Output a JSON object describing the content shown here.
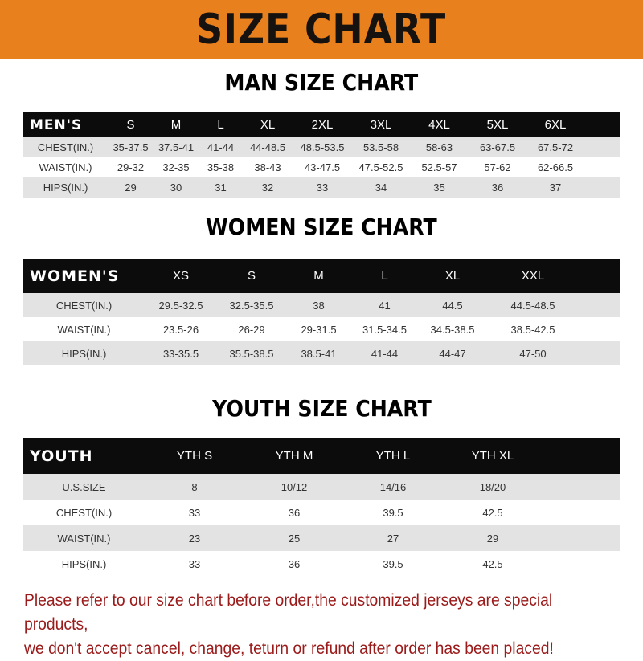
{
  "banner": {
    "title": "SIZE CHART",
    "color": "#e8801d"
  },
  "men": {
    "title": "MAN SIZE CHART",
    "header": [
      "MEN'S",
      "S",
      "M",
      "L",
      "XL",
      "2XL",
      "3XL",
      "4XL",
      "5XL",
      "6XL"
    ],
    "rows": [
      [
        "CHEST(IN.)",
        "35-37.5",
        "37.5-41",
        "41-44",
        "44-48.5",
        "48.5-53.5",
        "53.5-58",
        "58-63",
        "63-67.5",
        "67.5-72"
      ],
      [
        "WAIST(IN.)",
        "29-32",
        "32-35",
        "35-38",
        "38-43",
        "43-47.5",
        "47.5-52.5",
        "52.5-57",
        "57-62",
        "62-66.5"
      ],
      [
        "HIPS(IN.)",
        "29",
        "30",
        "31",
        "32",
        "33",
        "34",
        "35",
        "36",
        "37"
      ]
    ]
  },
  "women": {
    "title": "WOMEN SIZE CHART",
    "header": [
      "WOMEN'S",
      "XS",
      "S",
      "M",
      "L",
      "XL",
      "XXL"
    ],
    "rows": [
      [
        "CHEST(IN.)",
        "29.5-32.5",
        "32.5-35.5",
        "38",
        "41",
        "44.5",
        "44.5-48.5"
      ],
      [
        "WAIST(IN.)",
        "23.5-26",
        "26-29",
        "29-31.5",
        "31.5-34.5",
        "34.5-38.5",
        "38.5-42.5"
      ],
      [
        "HIPS(IN.)",
        "33-35.5",
        "35.5-38.5",
        "38.5-41",
        "41-44",
        "44-47",
        "47-50"
      ]
    ]
  },
  "youth": {
    "title": "YOUTH SIZE CHART",
    "header": [
      "YOUTH",
      "YTH S",
      "YTH M",
      "YTH L",
      "YTH XL"
    ],
    "rows": [
      [
        "U.S.SIZE",
        "8",
        "10/12",
        "14/16",
        "18/20"
      ],
      [
        "CHEST(IN.)",
        "33",
        "36",
        "39.5",
        "42.5"
      ],
      [
        "WAIST(IN.)",
        "23",
        "25",
        "27",
        "29"
      ],
      [
        "HIPS(IN.)",
        "33",
        "36",
        "39.5",
        "42.5"
      ]
    ]
  },
  "note": {
    "line1": "Please refer to our size chart before order,the customized jerseys are special products,",
    "line2": "we don't accept cancel, change, teturn or refund after order has been placed!",
    "color": "#9b1b1b"
  }
}
